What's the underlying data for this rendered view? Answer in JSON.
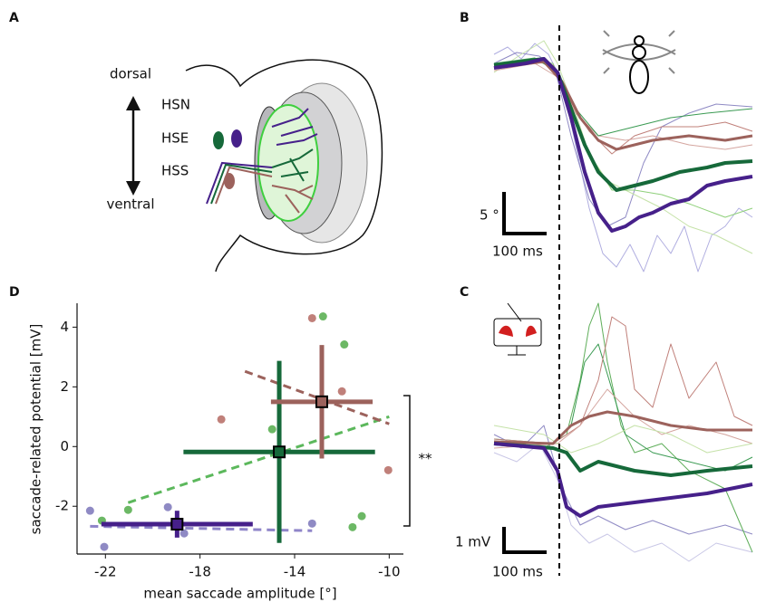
{
  "panels": {
    "A": {
      "label": "A",
      "dorsal": "dorsal",
      "ventral": "ventral"
    },
    "B": {
      "label": "B",
      "scale_y": "5 °",
      "scale_x": "100 ms"
    },
    "C": {
      "label": "C",
      "scale_y": "1 mV",
      "scale_x": "100 ms"
    }
  },
  "chart_data": {
    "type": "scatter",
    "panel_label": "D",
    "x_label": "mean saccade amplitude [°]",
    "y_label": "saccade-related potential [mV]",
    "xlim": [
      -23.2,
      -9.4
    ],
    "ylim": [
      -3.6,
      4.8
    ],
    "xticks": [
      -22,
      -18,
      -14,
      -10
    ],
    "yticks": [
      -2,
      0,
      2,
      4
    ],
    "annotation": "**",
    "series": [
      {
        "name": "HSN",
        "color": "#46208a",
        "point_color": "#8f8ac4",
        "fit_color": "#8f85c9",
        "x": [
          -22.65,
          -22.05,
          -19.36,
          -18.67,
          -13.26
        ],
        "values": [
          -2.15,
          -3.36,
          -2.03,
          -2.91,
          -2.58
        ],
        "mean": {
          "x": -18.97,
          "y": -2.6,
          "xerr": 3.2,
          "yerr": 0.45
        },
        "fit": {
          "x": [
            -22.65,
            -13.26
          ],
          "y": [
            -2.67,
            -2.82
          ]
        }
      },
      {
        "name": "HSE",
        "color": "#16693a",
        "point_color": "#6cb865",
        "fit_color": "#5cb85c",
        "x": [
          -21.04,
          -22.15,
          -14.95,
          -12.8,
          -11.9,
          -11.16,
          -11.55
        ],
        "values": [
          -2.12,
          -2.48,
          0.58,
          4.36,
          3.42,
          -2.33,
          -2.7
        ],
        "mean": {
          "x": -14.65,
          "y": -0.18,
          "xerr": 4.05,
          "yerr": 3.05
        },
        "fit": {
          "x": [
            -21.04,
            -10.0
          ],
          "y": [
            -1.88,
            1.0
          ]
        }
      },
      {
        "name": "HSS",
        "color": "#9c625c",
        "point_color": "#c0807a",
        "fit_color": "#9c625c",
        "x": [
          -17.1,
          -13.26,
          -12.0,
          -10.04
        ],
        "values": [
          0.91,
          4.3,
          1.85,
          -0.79
        ],
        "mean": {
          "x": -12.85,
          "y": 1.5,
          "xerr": 2.15,
          "yerr": 1.9
        },
        "fit": {
          "x": [
            -16.1,
            -10.0
          ],
          "y": [
            2.52,
            0.76
          ]
        }
      }
    ]
  }
}
